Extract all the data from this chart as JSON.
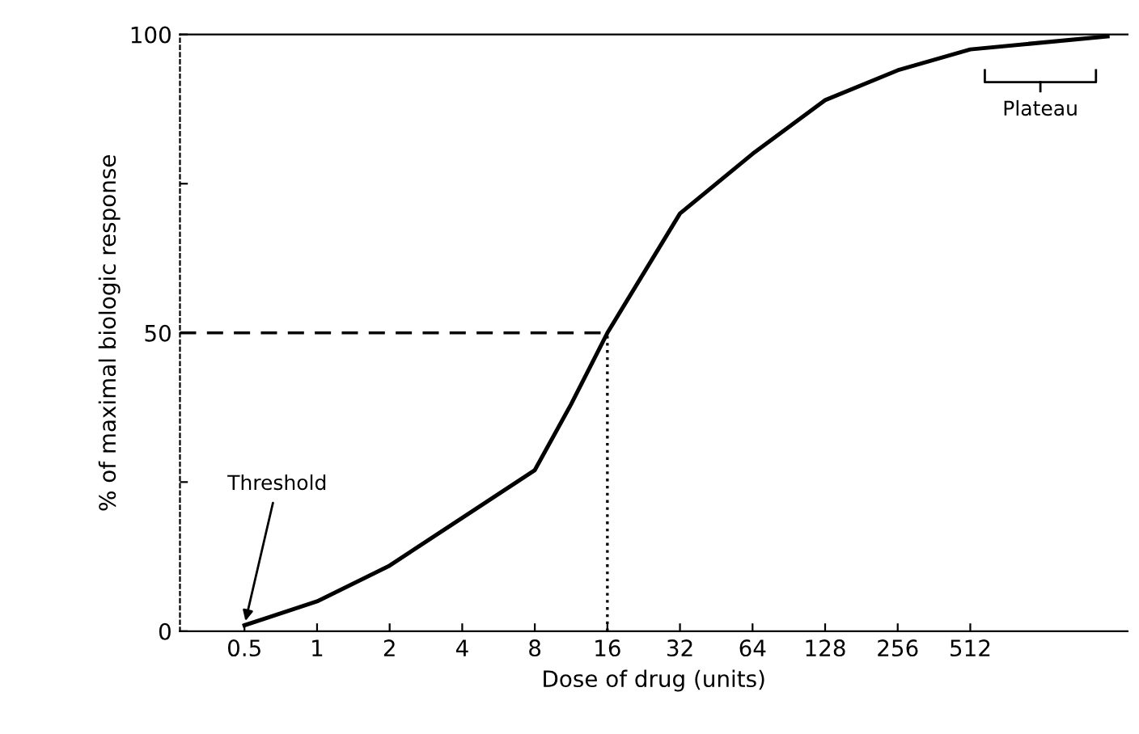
{
  "chart_data": {
    "type": "line",
    "xlabel": "Dose of drug (units)",
    "ylabel": "% of maximal biologic response",
    "x": [
      0.5,
      1,
      2,
      4,
      8,
      11.3,
      16,
      32,
      64,
      128,
      256,
      512,
      1900
    ],
    "series": [
      {
        "color": "#000000",
        "values": [
          1,
          5,
          11,
          19,
          27,
          38,
          50,
          70,
          80,
          89,
          94,
          97.5,
          99.7
        ]
      }
    ],
    "log": "x",
    "xlim": [
      0.27,
      2300
    ],
    "xticks": [
      0.5,
      1,
      2,
      4,
      8,
      16,
      32,
      64,
      128,
      256,
      512
    ],
    "ylim": [
      0,
      100
    ],
    "yticks": [
      0,
      {
        "value": 25,
        "label": null
      },
      50,
      {
        "value": 75,
        "label": null
      },
      100
    ],
    "ref_lines": [
      {
        "axis": "y",
        "value": 50,
        "line_style": "dashed",
        "color": "#000000"
      },
      {
        "axis": "x",
        "value": 16,
        "line_style": "dotted",
        "color": "#000000"
      }
    ],
    "annotations": [
      {
        "text": "Threshold",
        "x": 0.5,
        "y": 1
      },
      {
        "text": "Plateau",
        "x": 1000,
        "y": 97
      }
    ],
    "grid": false,
    "legend": false,
    "marker": "none",
    "line_style": "solid"
  }
}
